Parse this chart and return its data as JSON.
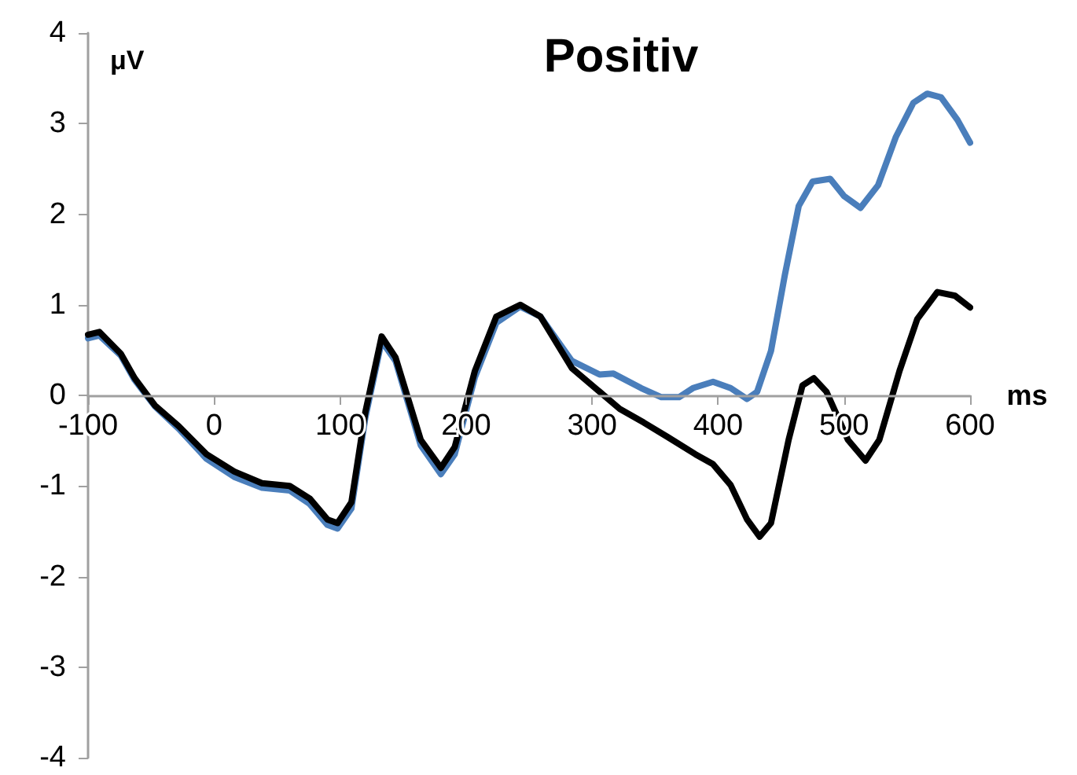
{
  "chart_data": {
    "type": "line",
    "title": "Positiv",
    "xlabel": "ms",
    "ylabel": "μV",
    "xlim": [
      -100,
      600
    ],
    "xticks": [
      -100,
      0,
      100,
      200,
      300,
      400,
      500,
      600
    ],
    "ylim": [
      -4,
      4
    ],
    "yticks": [
      -4,
      -3,
      -2,
      -1,
      0,
      1,
      2,
      3,
      4
    ],
    "grid": false,
    "marker": "none",
    "line_style": "solid",
    "series": [
      {
        "color": "#4a7ebb",
        "x": [
          -100,
          -91,
          -74,
          -63,
          -47,
          -28,
          -6,
          16,
          38,
          60,
          76,
          90,
          98,
          109,
          120,
          133,
          144,
          164,
          180,
          191,
          207,
          224,
          243,
          259,
          284,
          306,
          317,
          339,
          355,
          369,
          380,
          396,
          410,
          423,
          431,
          442,
          453,
          464,
          475,
          489,
          500,
          513,
          527,
          541,
          555,
          566,
          577,
          590,
          600
        ],
        "values": [
          0.63,
          0.66,
          0.44,
          0.17,
          -0.12,
          -0.37,
          -0.7,
          -0.9,
          -1.02,
          -1.05,
          -1.2,
          -1.43,
          -1.47,
          -1.25,
          -0.25,
          0.6,
          0.38,
          -0.55,
          -0.87,
          -0.65,
          0.2,
          0.8,
          0.98,
          0.87,
          0.38,
          0.23,
          0.24,
          0.08,
          -0.02,
          -0.02,
          0.08,
          0.15,
          0.08,
          -0.04,
          0.04,
          0.49,
          1.33,
          2.09,
          2.36,
          2.39,
          2.2,
          2.07,
          2.32,
          2.85,
          3.23,
          3.33,
          3.29,
          3.04,
          2.79
        ]
      },
      {
        "color": "#000000",
        "x": [
          -100,
          -91,
          -74,
          -63,
          -47,
          -28,
          -6,
          16,
          38,
          60,
          76,
          90,
          98,
          109,
          120,
          133,
          144,
          164,
          180,
          191,
          207,
          224,
          243,
          259,
          284,
          306,
          322,
          341,
          360,
          382,
          396,
          410,
          423,
          433,
          442,
          456,
          467,
          476,
          486,
          503,
          517,
          528,
          544,
          558,
          574,
          588,
          600
        ],
        "values": [
          0.67,
          0.7,
          0.46,
          0.19,
          -0.11,
          -0.34,
          -0.65,
          -0.84,
          -0.97,
          -1.0,
          -1.14,
          -1.37,
          -1.41,
          -1.18,
          -0.19,
          0.65,
          0.42,
          -0.49,
          -0.8,
          -0.57,
          0.27,
          0.87,
          1.0,
          0.87,
          0.3,
          0.04,
          -0.15,
          -0.3,
          -0.46,
          -0.65,
          -0.76,
          -0.99,
          -1.37,
          -1.56,
          -1.41,
          -0.49,
          0.11,
          0.19,
          0.04,
          -0.49,
          -0.72,
          -0.49,
          0.27,
          0.84,
          1.14,
          1.1,
          0.97
        ]
      }
    ]
  }
}
